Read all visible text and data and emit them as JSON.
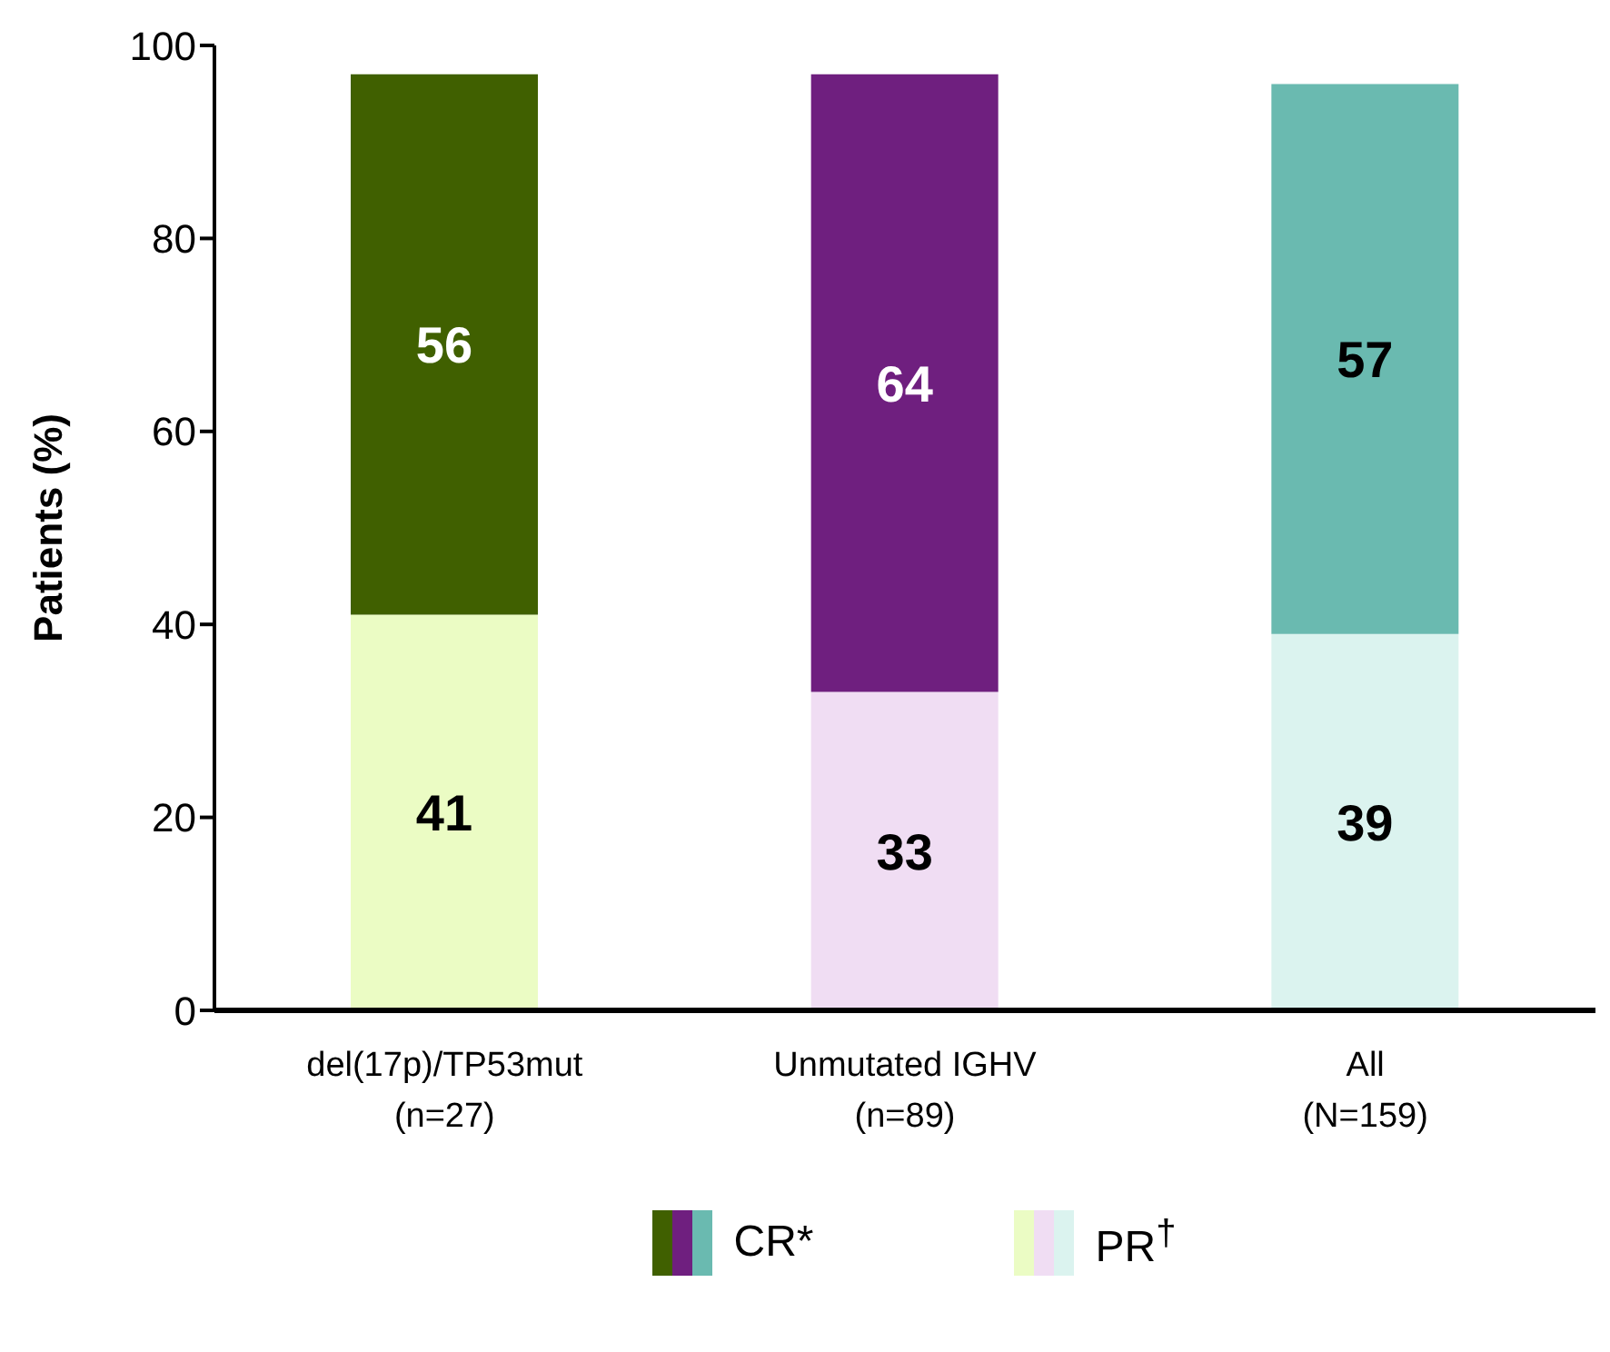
{
  "chart_data": {
    "type": "bar",
    "stacked": true,
    "ylabel": "Patients (%)",
    "categories": [
      "del(17p)/TP53mut\n(n=27)",
      "Unmutated IGHV\n(n=89)",
      "All\n(N=159)"
    ],
    "series": [
      {
        "name": "PR$^{†}$",
        "colors": [
          "#ebfcc4",
          "#f0ddf3",
          "#dbf3ef"
        ],
        "values": [
          41,
          33,
          39
        ]
      },
      {
        "name": "CR*",
        "colors": [
          "#406000",
          "#6f1f7f",
          "#6abab0"
        ],
        "values": [
          56,
          64,
          57
        ]
      }
    ],
    "ylim": [
      0,
      100
    ],
    "yticks": [
      0,
      20,
      40,
      60,
      80,
      100
    ],
    "grid": false,
    "legend": "bottom",
    "data_labels": true
  }
}
